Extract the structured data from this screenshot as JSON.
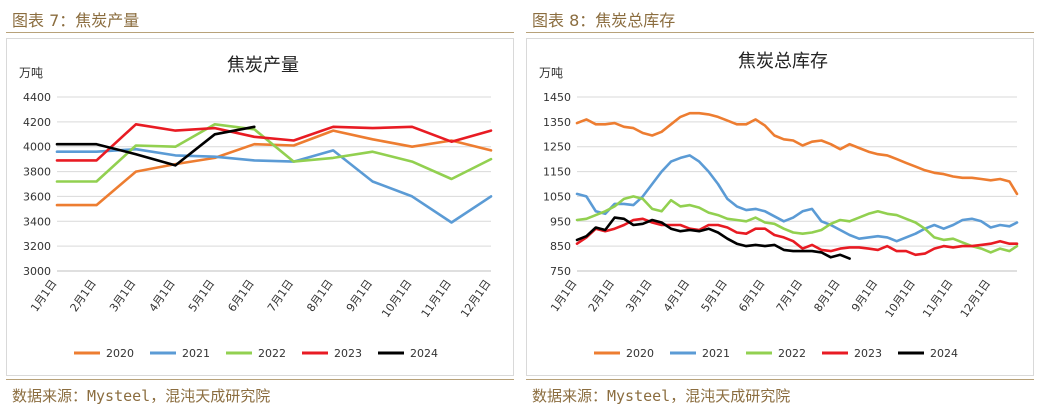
{
  "figures": [
    {
      "fig_title": "图表 7：焦炭产量",
      "source": "数据来源：Mysteel，混沌天成研究院"
    },
    {
      "fig_title": "图表 8：焦炭总库存",
      "source": "数据来源：Mysteel，混沌天成研究院"
    }
  ],
  "chart_data": [
    {
      "type": "line",
      "title": "焦炭产量",
      "unit": "万吨",
      "xlabel": "",
      "ylabel": "万吨",
      "ylim": [
        3000,
        4400
      ],
      "yticks": [
        3000,
        3200,
        3400,
        3600,
        3800,
        4000,
        4200,
        4400
      ],
      "grid": true,
      "legend_position": "bottom",
      "x_min": 0,
      "x_max": 11,
      "categories": [
        "1月1日",
        "2月1日",
        "3月1日",
        "4月1日",
        "5月1日",
        "6月1日",
        "7月1日",
        "8月1日",
        "9月1日",
        "10月1日",
        "11月1日",
        "12月1日"
      ],
      "series": [
        {
          "name": "2020",
          "color": "#ED7D31",
          "x": [
            0,
            1,
            2,
            3,
            4,
            5,
            6,
            7,
            8,
            9,
            10,
            11
          ],
          "values": [
            3530,
            3530,
            3800,
            3860,
            3910,
            4020,
            4010,
            4130,
            4060,
            4000,
            4050,
            3970
          ]
        },
        {
          "name": "2021",
          "color": "#5B9BD5",
          "x": [
            0,
            1,
            2,
            3,
            4,
            5,
            6,
            7,
            8,
            9,
            10,
            11
          ],
          "values": [
            3960,
            3960,
            3980,
            3930,
            3920,
            3890,
            3880,
            3970,
            3720,
            3600,
            3390,
            3600
          ]
        },
        {
          "name": "2022",
          "color": "#92D050",
          "x": [
            0,
            1,
            2,
            3,
            4,
            5,
            6,
            7,
            8,
            9,
            10,
            11
          ],
          "values": [
            3720,
            3720,
            4010,
            4000,
            4180,
            4140,
            3880,
            3910,
            3960,
            3880,
            3740,
            3900
          ]
        },
        {
          "name": "2023",
          "color": "#E81B23",
          "x": [
            0,
            1,
            2,
            3,
            4,
            5,
            6,
            7,
            8,
            9,
            10,
            11
          ],
          "values": [
            3890,
            3890,
            4180,
            4130,
            4150,
            4080,
            4050,
            4160,
            4150,
            4160,
            4040,
            4130
          ]
        },
        {
          "name": "2024",
          "color": "#000000",
          "x": [
            0,
            1,
            2,
            3,
            4,
            5
          ],
          "values": [
            4020,
            4020,
            3940,
            3850,
            4100,
            4160
          ]
        }
      ]
    },
    {
      "type": "line",
      "title": "焦炭总库存",
      "unit": "万吨",
      "xlabel": "",
      "ylabel": "万吨",
      "ylim": [
        750,
        1450
      ],
      "yticks": [
        750,
        850,
        950,
        1050,
        1150,
        1250,
        1350,
        1450
      ],
      "grid": true,
      "legend_position": "bottom",
      "x_min": 0,
      "x_max": 11.7,
      "categories": [
        "1月1日",
        "2月1日",
        "3月1日",
        "4月1日",
        "5月1日",
        "6月1日",
        "7月1日",
        "8月1日",
        "9月1日",
        "10月1日",
        "11月1日",
        "12月1日"
      ],
      "series": [
        {
          "name": "2020",
          "color": "#ED7D31",
          "x": [
            0,
            0.25,
            0.5,
            0.75,
            1,
            1.25,
            1.5,
            1.75,
            2,
            2.25,
            2.5,
            2.75,
            3,
            3.25,
            3.5,
            3.75,
            4,
            4.25,
            4.5,
            4.75,
            5,
            5.25,
            5.5,
            5.75,
            6,
            6.25,
            6.5,
            6.75,
            7,
            7.25,
            7.5,
            7.75,
            8,
            8.25,
            8.5,
            8.75,
            9,
            9.25,
            9.5,
            9.75,
            10,
            10.25,
            10.5,
            10.75,
            11,
            11.25,
            11.5,
            11.7
          ],
          "values": [
            1345,
            1360,
            1340,
            1340,
            1345,
            1330,
            1325,
            1305,
            1295,
            1310,
            1340,
            1370,
            1385,
            1385,
            1380,
            1370,
            1355,
            1340,
            1340,
            1360,
            1335,
            1295,
            1280,
            1275,
            1255,
            1270,
            1275,
            1260,
            1240,
            1260,
            1245,
            1230,
            1220,
            1215,
            1200,
            1185,
            1170,
            1155,
            1145,
            1140,
            1130,
            1125,
            1125,
            1120,
            1115,
            1120,
            1110,
            1060
          ]
        },
        {
          "name": "2021",
          "color": "#5B9BD5",
          "x": [
            0,
            0.25,
            0.5,
            0.75,
            1,
            1.25,
            1.5,
            1.75,
            2,
            2.25,
            2.5,
            2.75,
            3,
            3.25,
            3.5,
            3.75,
            4,
            4.25,
            4.5,
            4.75,
            5,
            5.25,
            5.5,
            5.75,
            6,
            6.25,
            6.5,
            6.75,
            7,
            7.25,
            7.5,
            7.75,
            8,
            8.25,
            8.5,
            8.75,
            9,
            9.25,
            9.5,
            9.75,
            10,
            10.25,
            10.5,
            10.75,
            11,
            11.25,
            11.5,
            11.7
          ],
          "values": [
            1060,
            1050,
            990,
            980,
            1020,
            1020,
            1015,
            1050,
            1100,
            1150,
            1190,
            1205,
            1215,
            1190,
            1150,
            1100,
            1040,
            1010,
            995,
            1000,
            990,
            970,
            950,
            965,
            990,
            1000,
            950,
            935,
            915,
            895,
            880,
            885,
            890,
            885,
            870,
            885,
            900,
            920,
            935,
            920,
            935,
            955,
            960,
            950,
            925,
            935,
            930,
            945
          ]
        },
        {
          "name": "2022",
          "color": "#92D050",
          "x": [
            0,
            0.25,
            0.5,
            0.75,
            1,
            1.25,
            1.5,
            1.75,
            2,
            2.25,
            2.5,
            2.75,
            3,
            3.25,
            3.5,
            3.75,
            4,
            4.25,
            4.5,
            4.75,
            5,
            5.25,
            5.5,
            5.75,
            6,
            6.25,
            6.5,
            6.75,
            7,
            7.25,
            7.5,
            7.75,
            8,
            8.25,
            8.5,
            8.75,
            9,
            9.25,
            9.5,
            9.75,
            10,
            10.25,
            10.5,
            10.75,
            11,
            11.25,
            11.5,
            11.7
          ],
          "values": [
            955,
            960,
            975,
            990,
            1010,
            1040,
            1050,
            1040,
            1000,
            990,
            1035,
            1010,
            1015,
            1005,
            985,
            975,
            960,
            955,
            950,
            965,
            945,
            940,
            920,
            905,
            900,
            905,
            915,
            940,
            955,
            950,
            965,
            980,
            990,
            980,
            975,
            960,
            945,
            920,
            885,
            875,
            880,
            865,
            850,
            840,
            825,
            840,
            830,
            850
          ]
        },
        {
          "name": "2023",
          "color": "#E81B23",
          "x": [
            0,
            0.25,
            0.5,
            0.75,
            1,
            1.25,
            1.5,
            1.75,
            2,
            2.25,
            2.5,
            2.75,
            3,
            3.25,
            3.5,
            3.75,
            4,
            4.25,
            4.5,
            4.75,
            5,
            5.25,
            5.5,
            5.75,
            6,
            6.25,
            6.5,
            6.75,
            7,
            7.25,
            7.5,
            7.75,
            8,
            8.25,
            8.5,
            8.75,
            9,
            9.25,
            9.5,
            9.75,
            10,
            10.25,
            10.5,
            10.75,
            11,
            11.25,
            11.5,
            11.7
          ],
          "values": [
            860,
            885,
            920,
            910,
            920,
            935,
            955,
            960,
            945,
            935,
            935,
            935,
            920,
            915,
            935,
            935,
            925,
            905,
            900,
            920,
            920,
            895,
            885,
            870,
            840,
            855,
            835,
            830,
            840,
            845,
            845,
            840,
            835,
            850,
            830,
            830,
            815,
            820,
            840,
            850,
            845,
            850,
            850,
            855,
            860,
            870,
            860,
            860
          ]
        },
        {
          "name": "2024",
          "color": "#000000",
          "x": [
            0,
            0.25,
            0.5,
            0.75,
            1,
            1.25,
            1.5,
            1.75,
            2,
            2.25,
            2.5,
            2.75,
            3,
            3.25,
            3.5,
            3.75,
            4,
            4.25,
            4.5,
            4.75,
            5,
            5.25,
            5.5,
            5.75,
            6,
            6.25,
            6.5,
            6.75,
            7,
            7.25
          ],
          "values": [
            875,
            890,
            925,
            915,
            965,
            960,
            935,
            940,
            955,
            945,
            920,
            910,
            915,
            910,
            920,
            905,
            880,
            860,
            850,
            855,
            850,
            855,
            835,
            830,
            830,
            830,
            825,
            805,
            815,
            800
          ]
        }
      ]
    }
  ]
}
